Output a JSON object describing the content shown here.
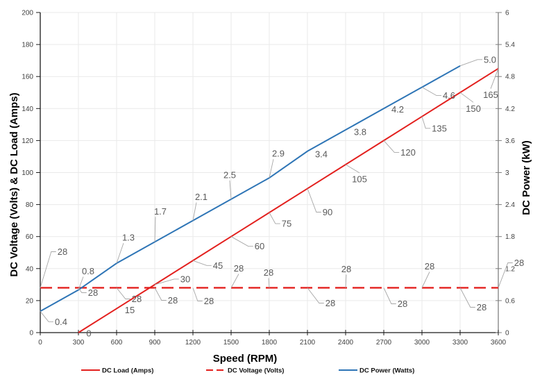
{
  "chart_data": {
    "type": "line",
    "title": "",
    "xlabel": "Speed (RPM)",
    "ylabel": "DC Voltage (Volts) & DC Load (Amps)",
    "y2label": "DC Power (kW)",
    "xlim": [
      0,
      3600
    ],
    "ylim": [
      0,
      200
    ],
    "y2lim": [
      0,
      6
    ],
    "xticks": [
      0,
      300,
      600,
      900,
      1200,
      1500,
      1800,
      2100,
      2400,
      2700,
      3000,
      3300,
      3600
    ],
    "yticks": [
      0,
      20,
      40,
      60,
      80,
      100,
      120,
      140,
      160,
      180,
      200
    ],
    "y2ticks": [
      0,
      0.6,
      1.2,
      1.8,
      2.4,
      3,
      3.6,
      4.2,
      4.8,
      5.4,
      6
    ],
    "grid": true,
    "legend": "bottom",
    "series": [
      {
        "name": "DC Load (Amps)",
        "axis": "left",
        "style": "solid",
        "color": "#e3201e",
        "x": [
          300,
          600,
          900,
          1200,
          1500,
          1800,
          2100,
          2400,
          2700,
          3000,
          3300,
          3600
        ],
        "values": [
          0,
          15,
          30,
          45,
          60,
          75,
          90,
          105,
          120,
          135,
          150,
          165
        ],
        "labels": [
          "0",
          "15",
          "30",
          "45",
          "60",
          "75",
          "90",
          "105",
          "120",
          "135",
          "150",
          "165"
        ]
      },
      {
        "name": "DC Voltage (Volts)",
        "axis": "left",
        "style": "dashed",
        "color": "#e3201e",
        "x": [
          0,
          300,
          600,
          900,
          1200,
          1500,
          1800,
          2100,
          2400,
          2700,
          3000,
          3300,
          3600
        ],
        "values": [
          28,
          28,
          28,
          28,
          28,
          28,
          28,
          28,
          28,
          28,
          28,
          28,
          28
        ],
        "labels": [
          "28",
          "28",
          "28",
          "28",
          "28",
          "28",
          "28",
          "28",
          "28",
          "28",
          "28",
          "28",
          "28"
        ]
      },
      {
        "name": "DC Power (Watts)",
        "axis": "right",
        "style": "solid",
        "color": "#2e75b6",
        "x": [
          0,
          300,
          600,
          900,
          1200,
          1500,
          1800,
          2100,
          2400,
          2700,
          3000,
          3300
        ],
        "values": [
          0.4,
          0.8,
          1.3,
          1.7,
          2.1,
          2.5,
          2.9,
          3.4,
          3.8,
          4.2,
          4.6,
          5.0
        ],
        "labels": [
          "0.4",
          "0.8",
          "1.3",
          "1.7",
          "2.1",
          "2.5",
          "2.9",
          "3.4",
          "3.8",
          "4.2",
          "4.6",
          "5.0"
        ]
      }
    ]
  }
}
